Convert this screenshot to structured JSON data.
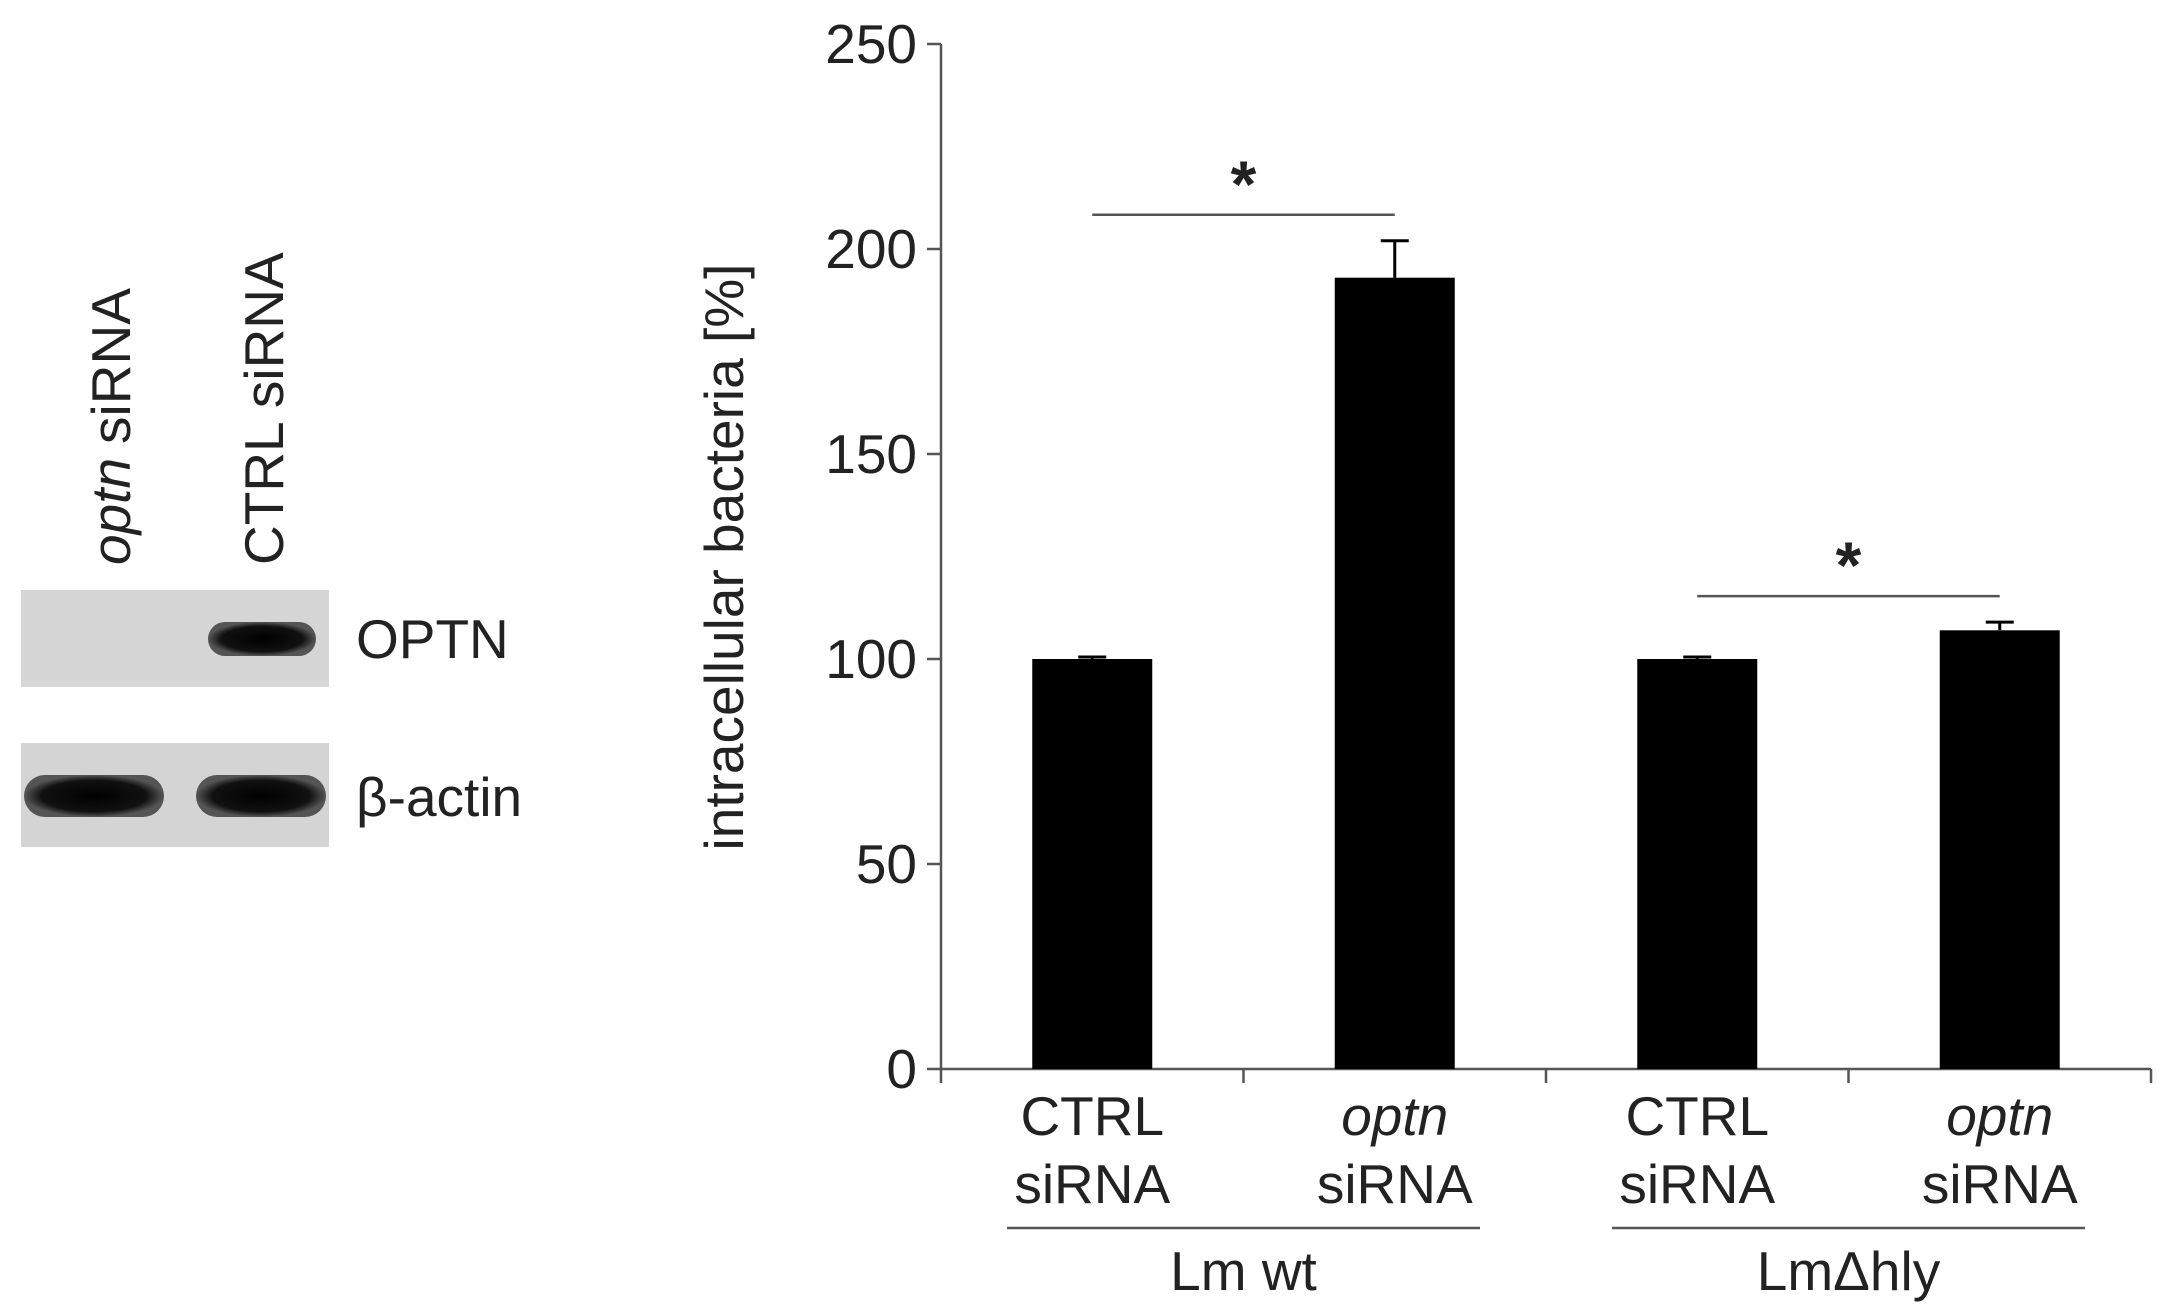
{
  "blot": {
    "lanes": [
      {
        "gene": "optn",
        "label": "siRNA"
      },
      {
        "label": "CTRL siRNA"
      }
    ],
    "rows": [
      "OPTN",
      "β-actin"
    ]
  },
  "chart_data": {
    "type": "bar",
    "y_label": "intracellular bacteria [%]",
    "categories": [
      "CTRL siRNA",
      "optn siRNA",
      "CTRL siRNA",
      "optn siRNA"
    ],
    "category_italic_first_word": [
      false,
      true,
      false,
      true
    ],
    "groups": [
      "Lm wt",
      "LmΔhly"
    ],
    "values": [
      100,
      193,
      100,
      107
    ],
    "errors": [
      0.5,
      9,
      0.5,
      2
    ],
    "color": "#000000",
    "significance": [
      "*",
      "*"
    ],
    "ylim": [
      0,
      250
    ],
    "yticks": [
      0,
      50,
      100,
      150,
      200,
      250
    ],
    "grid": false
  }
}
